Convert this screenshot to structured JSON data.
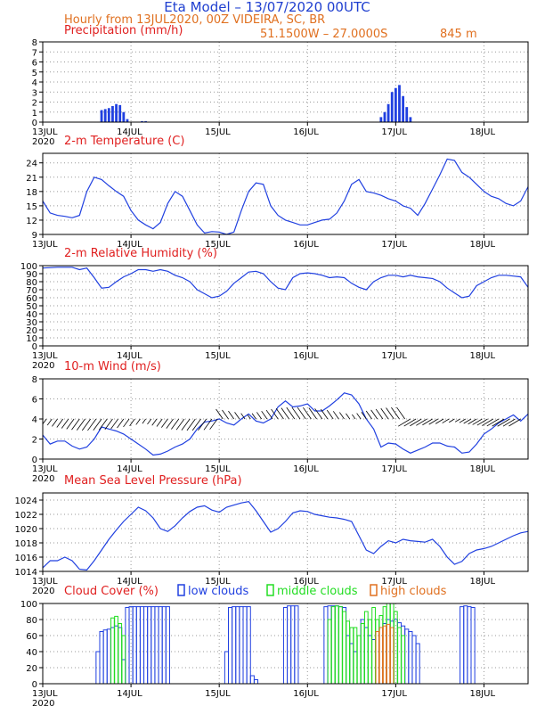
{
  "header": {
    "title": "Eta Model – 13/07/2020 00UTC",
    "subtitle": "Hourly from 13JUL2020, 00Z  VIDEIRA, SC, BR",
    "location": "51.1500W – 27.0000S",
    "elevation": "845  m"
  },
  "colors": {
    "title": "#1f3fd0",
    "orange": "#e07020",
    "red": "#e02020",
    "blue": "#2040e0",
    "green": "#22dd22",
    "wind": "#000000"
  },
  "x_axis": {
    "ticks": [
      "13JUL",
      "14JUL",
      "15JUL",
      "16JUL",
      "17JUL",
      "18JUL"
    ],
    "year": "2020",
    "tick_hours": [
      0,
      24,
      48,
      72,
      96,
      120
    ],
    "range_hours": [
      0,
      132
    ]
  },
  "chart_data": [
    {
      "type": "bar",
      "title": "Precipitation (mm/h)",
      "ylim": [
        0,
        8
      ],
      "yticks": [
        "0",
        "1",
        "2",
        "3",
        "4",
        "5",
        "6",
        "7",
        "8"
      ],
      "x_hours": [
        16,
        17,
        18,
        19,
        20,
        21,
        22,
        23,
        27,
        28,
        92,
        93,
        94,
        95,
        96,
        97,
        98,
        99,
        100
      ],
      "values": [
        1.2,
        1.3,
        1.4,
        1.6,
        1.8,
        1.7,
        1.0,
        0.3,
        0.1,
        0.1,
        0.5,
        1.0,
        1.8,
        3.0,
        3.4,
        3.7,
        2.6,
        1.5,
        0.5
      ]
    },
    {
      "type": "line",
      "title": "2-m Temperature (C)",
      "ylim": [
        9,
        26
      ],
      "yticks": [
        "9",
        "12",
        "15",
        "18",
        "21",
        "24"
      ],
      "ytick_values": [
        9,
        12,
        15,
        18,
        21,
        24
      ],
      "x_hours": [
        0,
        2,
        4,
        6,
        8,
        10,
        12,
        14,
        16,
        18,
        20,
        22,
        24,
        26,
        28,
        30,
        32,
        34,
        36,
        38,
        40,
        42,
        44,
        46,
        48,
        50,
        52,
        54,
        56,
        58,
        60,
        62,
        64,
        66,
        68,
        70,
        72,
        74,
        76,
        78,
        80,
        82,
        84,
        86,
        88,
        90,
        92,
        94,
        96,
        98,
        100,
        102,
        104,
        106,
        108,
        110,
        112,
        114,
        116,
        118,
        120,
        122,
        124,
        126,
        128,
        130,
        132
      ],
      "values": [
        16,
        13.5,
        13,
        12.8,
        12.5,
        13,
        18,
        21,
        20.5,
        19.2,
        18,
        17,
        14,
        12,
        11,
        10.2,
        11.5,
        15.5,
        18,
        17,
        14,
        11,
        9.3,
        9.6,
        9.5,
        9,
        9.5,
        14,
        18,
        19.8,
        19.5,
        15,
        13,
        12,
        11.5,
        11,
        11,
        11.5,
        12,
        12.2,
        13.5,
        16,
        19.5,
        20.5,
        18,
        17.7,
        17.2,
        16.5,
        16,
        15,
        14.5,
        13,
        15.5,
        18.5,
        21.5,
        24.8,
        24.5,
        22,
        21,
        19.5,
        18,
        17,
        16.5,
        15.5,
        15,
        16,
        19
      ]
    },
    {
      "type": "line",
      "title": "2-m Relative Humidity (%)",
      "ylim": [
        0,
        100
      ],
      "yticks": [
        "0",
        "10",
        "20",
        "30",
        "40",
        "50",
        "60",
        "70",
        "80",
        "90",
        "100"
      ],
      "ytick_values": [
        0,
        10,
        20,
        30,
        40,
        50,
        60,
        70,
        80,
        90,
        100
      ],
      "x_hours": [
        0,
        4,
        8,
        10,
        12,
        14,
        16,
        18,
        20,
        22,
        24,
        26,
        28,
        30,
        32,
        34,
        36,
        38,
        40,
        42,
        44,
        46,
        48,
        50,
        52,
        54,
        56,
        58,
        60,
        62,
        64,
        66,
        68,
        70,
        72,
        74,
        76,
        78,
        80,
        82,
        84,
        86,
        88,
        90,
        92,
        94,
        96,
        98,
        100,
        102,
        104,
        106,
        108,
        110,
        112,
        114,
        116,
        118,
        120,
        122,
        124,
        126,
        128,
        130,
        132
      ],
      "values": [
        97,
        98,
        98,
        95,
        97,
        85,
        72,
        73,
        80,
        86,
        90,
        95,
        95,
        93,
        95,
        93,
        88,
        85,
        80,
        70,
        65,
        60,
        62,
        68,
        78,
        85,
        92,
        93,
        90,
        80,
        72,
        70,
        85,
        90,
        91,
        90,
        88,
        85,
        86,
        85,
        78,
        73,
        70,
        80,
        85,
        88,
        88,
        86,
        88,
        86,
        85,
        84,
        80,
        72,
        66,
        60,
        62,
        75,
        80,
        85,
        88,
        88,
        87,
        86,
        73
      ]
    },
    {
      "type": "line",
      "title": "10-m Wind (m/s)",
      "ylim": [
        0,
        8
      ],
      "yticks": [
        "0",
        "2",
        "4",
        "6",
        "8"
      ],
      "ytick_values": [
        0,
        2,
        4,
        6,
        8
      ],
      "x_hours": [
        0,
        2,
        4,
        6,
        8,
        10,
        12,
        14,
        16,
        18,
        20,
        22,
        24,
        26,
        28,
        30,
        32,
        34,
        36,
        38,
        40,
        42,
        44,
        46,
        48,
        50,
        52,
        54,
        56,
        58,
        60,
        62,
        64,
        66,
        68,
        70,
        72,
        74,
        76,
        78,
        80,
        82,
        84,
        86,
        88,
        90,
        92,
        94,
        96,
        98,
        100,
        102,
        104,
        106,
        108,
        110,
        112,
        114,
        116,
        118,
        120,
        122,
        124,
        126,
        128,
        130,
        132
      ],
      "values": [
        2.4,
        1.5,
        1.8,
        1.8,
        1.3,
        1.0,
        1.2,
        2.0,
        3.2,
        3.0,
        2.8,
        2.5,
        2.0,
        1.5,
        1.0,
        0.4,
        0.5,
        0.8,
        1.2,
        1.5,
        2.0,
        3.0,
        3.7,
        3.8,
        4.0,
        3.6,
        3.4,
        4.0,
        4.5,
        3.8,
        3.6,
        4.0,
        5.2,
        5.8,
        5.2,
        5.3,
        5.5,
        4.8,
        4.8,
        5.3,
        5.9,
        6.6,
        6.4,
        5.5,
        4.0,
        3.0,
        1.2,
        1.6,
        1.5,
        1.0,
        0.6,
        0.9,
        1.2,
        1.6,
        1.6,
        1.3,
        1.2,
        0.6,
        0.7,
        1.5,
        2.5,
        3.0,
        3.6,
        4.0,
        4.4,
        3.8,
        4.5
      ]
    },
    {
      "type": "line",
      "title": "Mean Sea Level Pressure (hPa)",
      "ylim": [
        1014,
        1025
      ],
      "yticks": [
        "1014",
        "1016",
        "1018",
        "1020",
        "1022",
        "1024"
      ],
      "ytick_values": [
        1014,
        1016,
        1018,
        1020,
        1022,
        1024
      ],
      "x_hours": [
        0,
        2,
        4,
        6,
        8,
        10,
        12,
        14,
        16,
        18,
        20,
        22,
        24,
        26,
        28,
        30,
        32,
        34,
        36,
        38,
        40,
        42,
        44,
        46,
        48,
        50,
        52,
        54,
        56,
        58,
        60,
        62,
        64,
        66,
        68,
        70,
        72,
        74,
        76,
        78,
        80,
        82,
        84,
        86,
        88,
        90,
        92,
        94,
        96,
        98,
        100,
        102,
        104,
        106,
        108,
        110,
        112,
        114,
        116,
        118,
        120,
        122,
        124,
        126,
        128,
        130,
        132
      ],
      "values": [
        1014.5,
        1015.5,
        1015.5,
        1016,
        1015.5,
        1014.3,
        1014.2,
        1015.5,
        1017,
        1018.5,
        1019.8,
        1021,
        1022,
        1023,
        1022.5,
        1021.5,
        1020,
        1019.6,
        1020.4,
        1021.5,
        1022.4,
        1023,
        1023.2,
        1022.6,
        1022.3,
        1023,
        1023.3,
        1023.6,
        1023.8,
        1022.5,
        1021,
        1019.5,
        1020,
        1021,
        1022.2,
        1022.5,
        1022.4,
        1022,
        1021.8,
        1021.6,
        1021.5,
        1021.3,
        1021,
        1019,
        1017,
        1016.5,
        1017.5,
        1018.3,
        1018,
        1018.5,
        1018.3,
        1018.2,
        1018.1,
        1018.5,
        1017.5,
        1016,
        1015,
        1015.4,
        1016.5,
        1017,
        1017.2,
        1017.5,
        1018,
        1018.5,
        1019,
        1019.4,
        1019.6
      ]
    },
    {
      "type": "bar",
      "title": "Cloud Cover (%)",
      "legend": [
        "low clouds",
        "middle clouds",
        "high clouds"
      ],
      "ylim": [
        0,
        100
      ],
      "yticks": [
        "0",
        "20",
        "40",
        "60",
        "80",
        "100"
      ],
      "ytick_values": [
        0,
        20,
        40,
        60,
        80,
        100
      ],
      "series": [
        {
          "name": "low clouds",
          "x_hours": [
            15,
            16,
            17,
            18,
            19,
            20,
            21,
            22,
            23,
            24,
            25,
            26,
            27,
            28,
            29,
            30,
            31,
            32,
            33,
            34,
            50,
            51,
            52,
            53,
            54,
            55,
            56,
            57,
            58,
            66,
            67,
            68,
            69,
            77,
            78,
            79,
            80,
            81,
            82,
            83,
            84,
            85,
            86,
            87,
            88,
            89,
            90,
            91,
            92,
            93,
            94,
            95,
            96,
            97,
            98,
            99,
            100,
            101,
            102,
            114,
            115,
            116,
            117
          ],
          "values": [
            40,
            65,
            67,
            68,
            70,
            72,
            70,
            30,
            95,
            96,
            96,
            96,
            96,
            96,
            96,
            96,
            96,
            96,
            96,
            96,
            40,
            95,
            96,
            96,
            96,
            96,
            96,
            10,
            5,
            95,
            97,
            97,
            97,
            96,
            97,
            97,
            97,
            96,
            95,
            60,
            50,
            40,
            60,
            80,
            70,
            60,
            55,
            65,
            70,
            75,
            80,
            78,
            80,
            76,
            72,
            68,
            65,
            60,
            50,
            96,
            97,
            96,
            95
          ]
        },
        {
          "name": "middle clouds",
          "x_hours": [
            19,
            20,
            21,
            22,
            78,
            79,
            80,
            81,
            82,
            83,
            84,
            85,
            86,
            87,
            88,
            89,
            90,
            91,
            92,
            93,
            94,
            95,
            96,
            97,
            98
          ],
          "values": [
            82,
            84,
            75,
            60,
            80,
            96,
            97,
            96,
            90,
            78,
            70,
            70,
            60,
            75,
            90,
            80,
            95,
            80,
            85,
            96,
            100,
            100,
            90,
            70,
            60
          ]
        },
        {
          "name": "high clouds",
          "x_hours": [
            91,
            92,
            93,
            94,
            95
          ],
          "values": [
            65,
            70,
            72,
            74,
            70
          ]
        }
      ]
    }
  ]
}
